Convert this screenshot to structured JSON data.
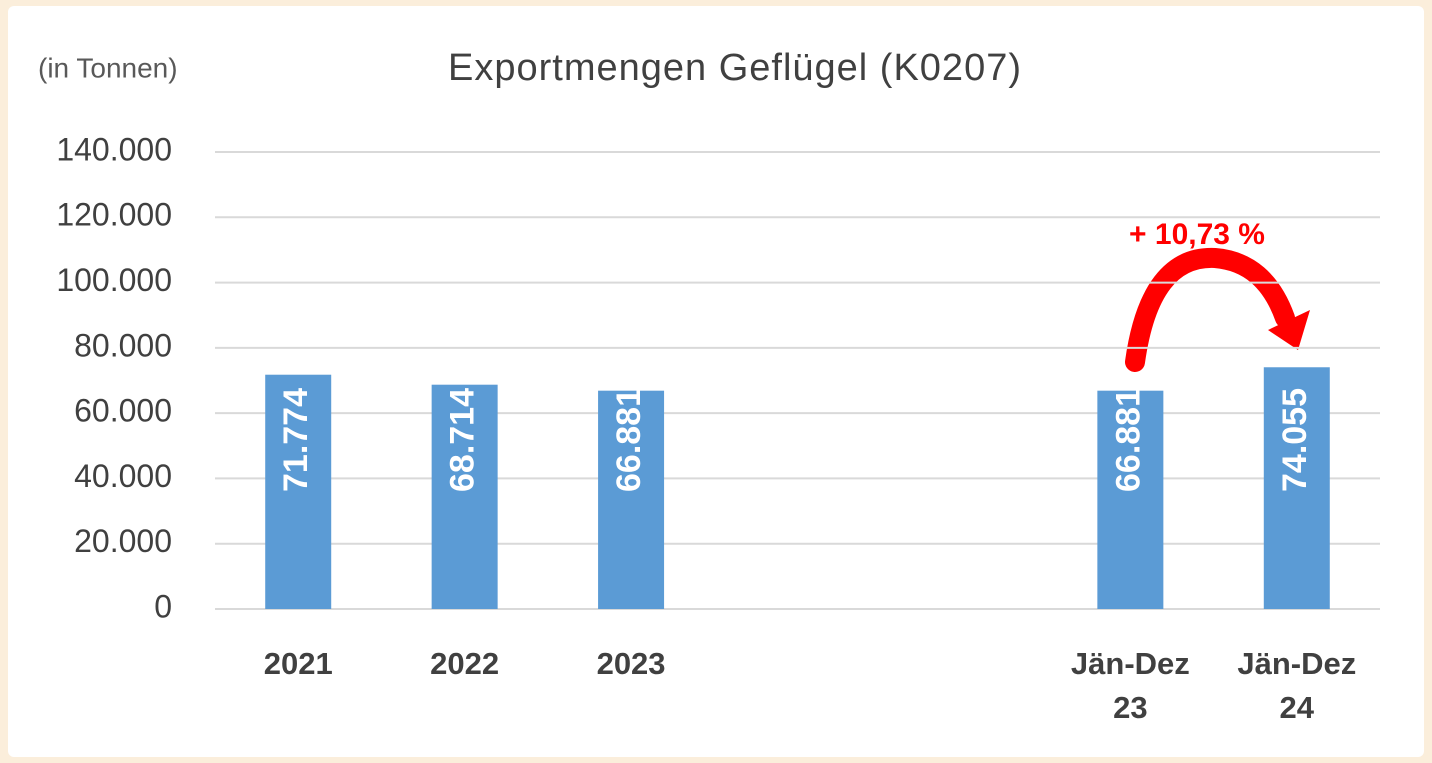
{
  "chart_data": {
    "type": "bar",
    "title": "Exportmengen  Geflügel (K0207)",
    "subtitle": "(in Tonnen)",
    "annotation": "+ 10,73 %",
    "categories": [
      "2021",
      "2022",
      "2023",
      null,
      null,
      "Jän-Dez 23",
      "Jän-Dez 24"
    ],
    "values": [
      71774,
      68714,
      66881,
      null,
      null,
      66881,
      74055
    ],
    "value_labels": [
      "71.774",
      "68.714",
      "66.881",
      null,
      null,
      "66.881",
      "74.055"
    ],
    "color": "#5b9bd5",
    "ylim": [
      0,
      140000
    ],
    "yticks": [
      0,
      {
        "value": 20000,
        "label": "20.000"
      },
      {
        "value": 40000,
        "label": "40.000"
      },
      {
        "value": 60000,
        "label": "60.000"
      },
      {
        "value": 80000,
        "label": "80.000"
      },
      {
        "value": 100000,
        "label": "100.000"
      },
      {
        "value": 120000,
        "label": "120.000"
      },
      {
        "value": 140000,
        "label": "140.000"
      }
    ],
    "grid": true
  }
}
